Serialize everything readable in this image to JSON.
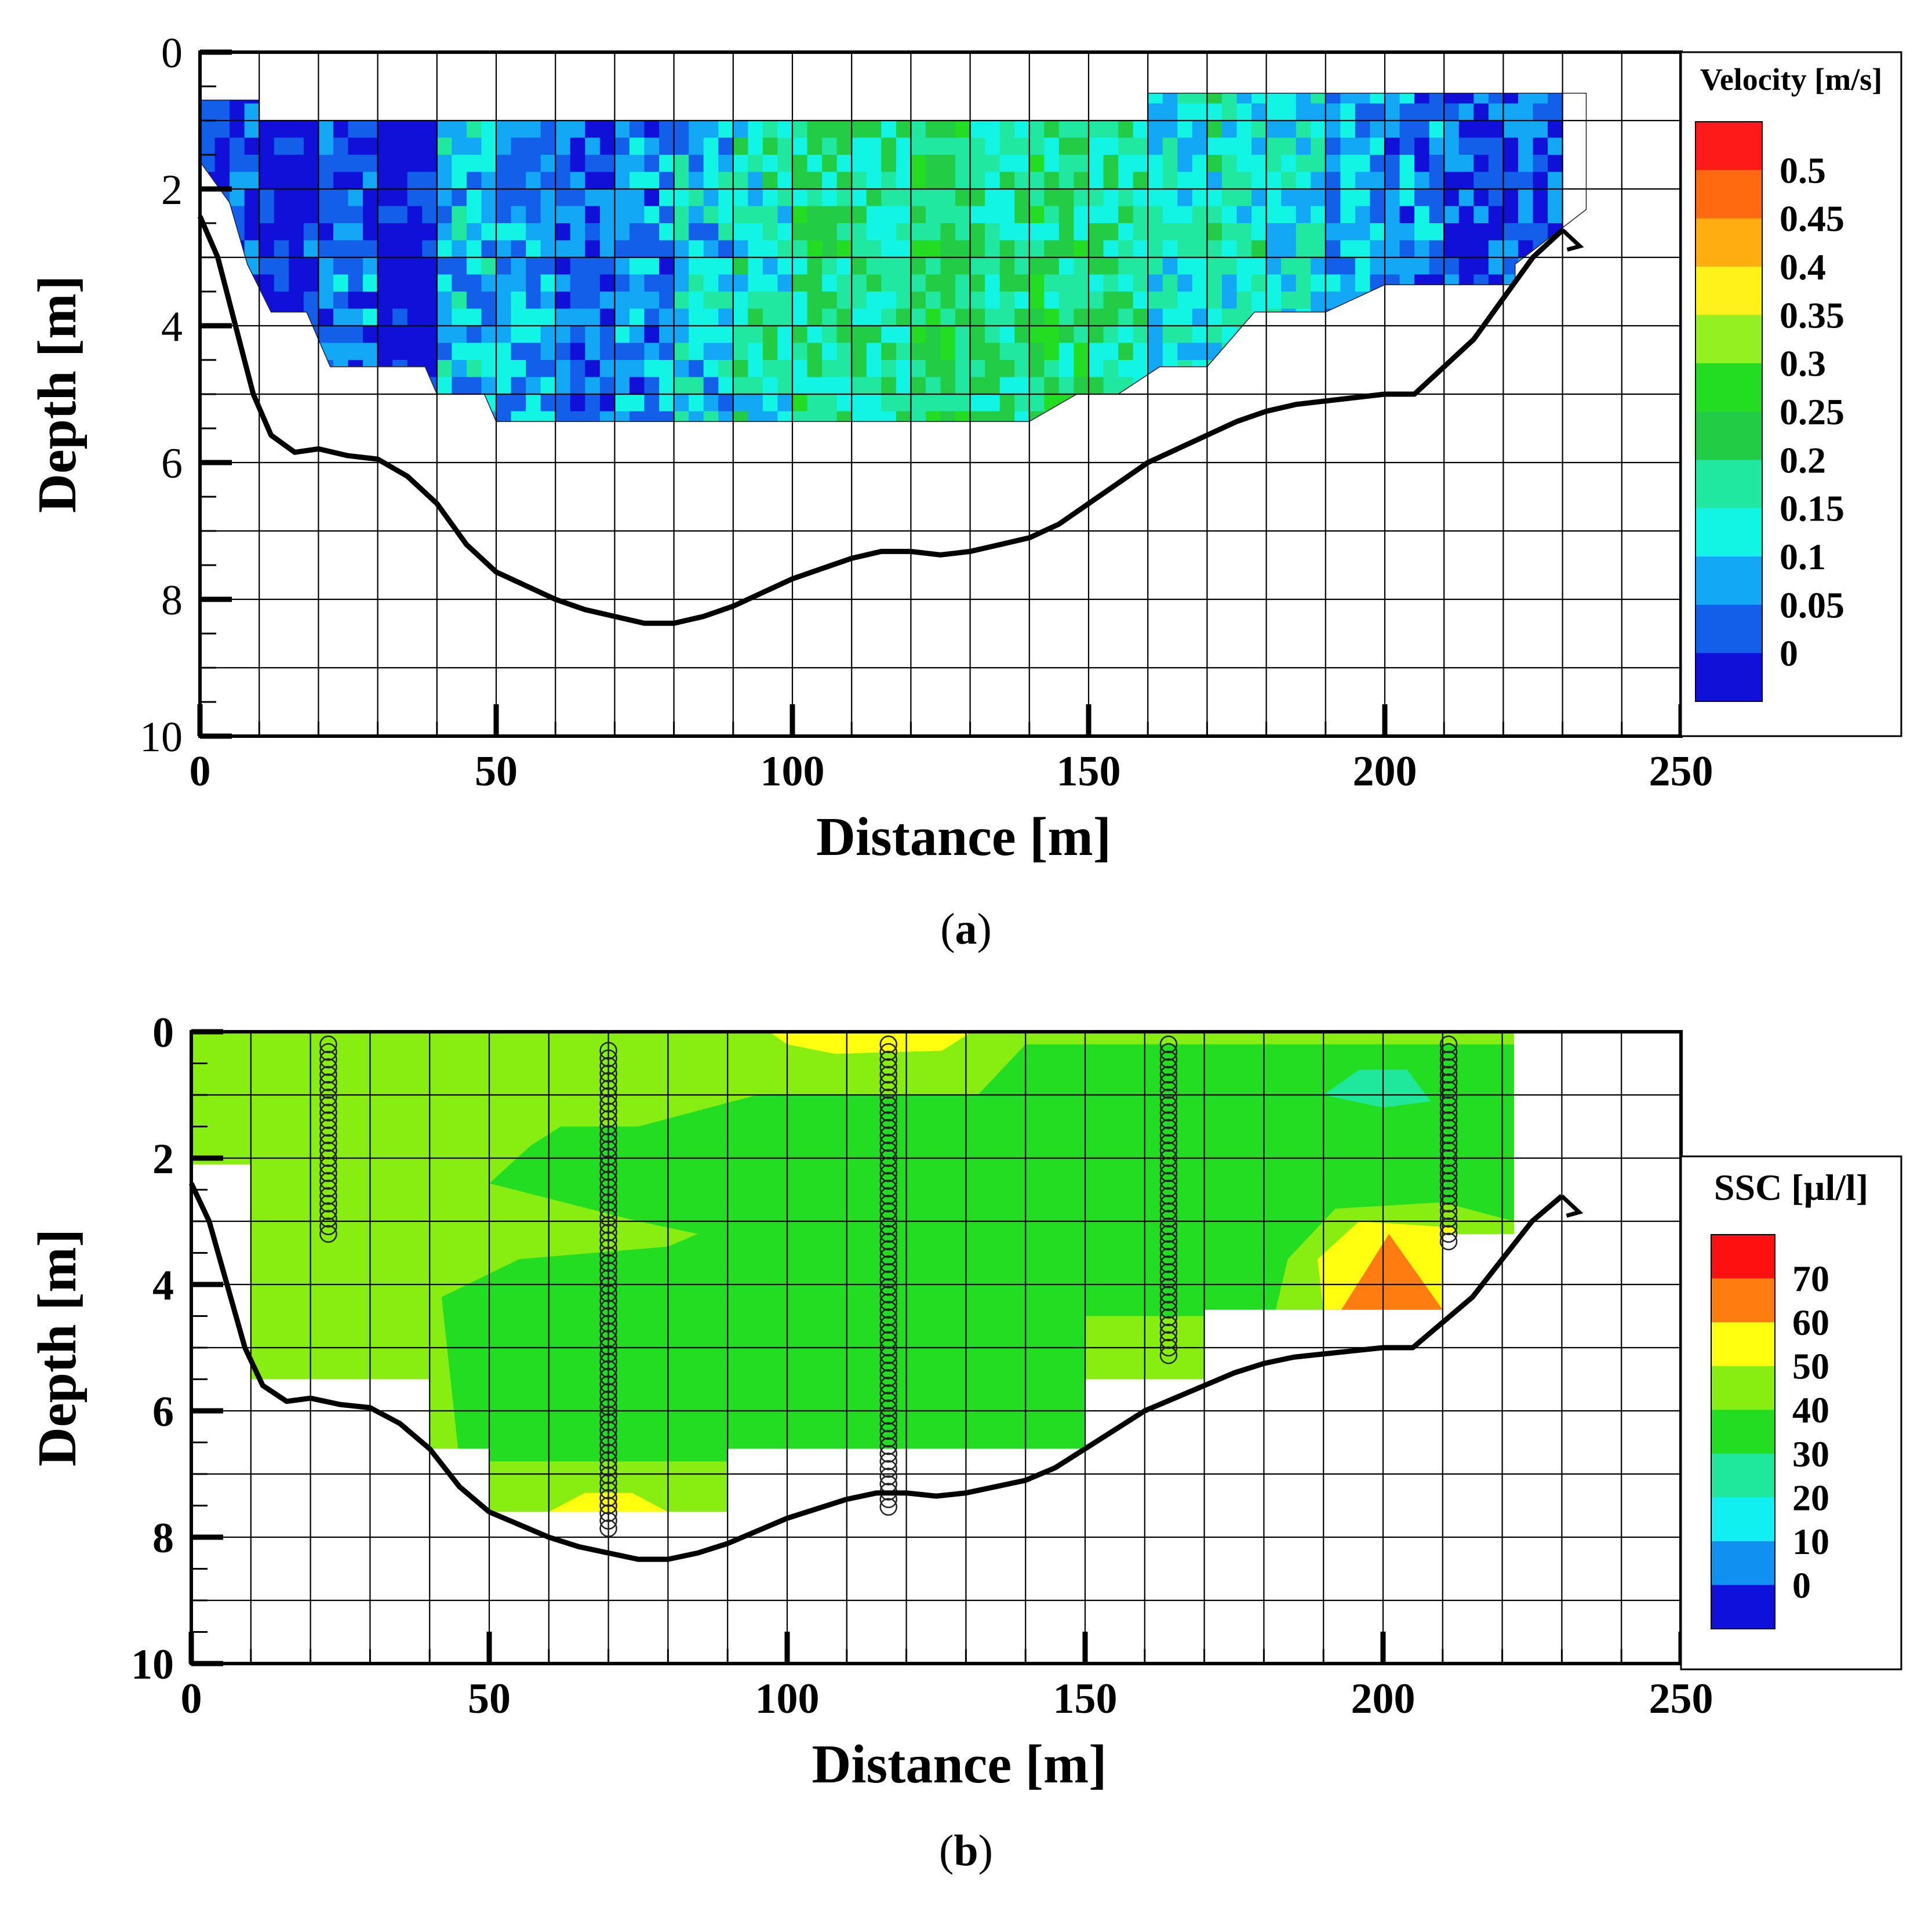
{
  "captions": {
    "a": "a",
    "b": "b"
  },
  "chart_data": [
    {
      "id": "a",
      "type": "heatmap",
      "title": "",
      "xlabel": "Distance [m]",
      "ylabel": "Depth [m]",
      "xlim": [
        0,
        250
      ],
      "ylim": [
        10,
        0
      ],
      "xticks": [
        0,
        50,
        100,
        150,
        200,
        250
      ],
      "yticks": [
        0,
        2,
        4,
        6,
        8,
        10
      ],
      "grid": true,
      "legend": {
        "title": "Velocity [m/s]",
        "labels": [
          "0.5",
          "0.45",
          "0.4",
          "0.35",
          "0.3",
          "0.25",
          "0.2",
          "0.15",
          "0.1",
          "0.05",
          "0"
        ],
        "colors": [
          "#ff1a1a",
          "#ff6a10",
          "#ffad10",
          "#fff21a",
          "#94f020",
          "#22dd22",
          "#22cc44",
          "#20e8a0",
          "#12f5e4",
          "#12a8f5",
          "#1260ea",
          "#1010d8"
        ],
        "placement": "right"
      },
      "coverage_bounds": [
        [
          0,
          0.7
        ],
        [
          10,
          0.7
        ],
        [
          10,
          1.0
        ],
        [
          160,
          1.0
        ],
        [
          160,
          0.6
        ],
        [
          234,
          0.6
        ],
        [
          234,
          2.3
        ],
        [
          222,
          3.1
        ],
        [
          222,
          3.4
        ],
        [
          200,
          3.4
        ],
        [
          190,
          3.8
        ],
        [
          178,
          3.8
        ],
        [
          170,
          4.6
        ],
        [
          162,
          4.6
        ],
        [
          155,
          5.0
        ],
        [
          148,
          5.0
        ],
        [
          140,
          5.4
        ],
        [
          50,
          5.4
        ],
        [
          48,
          5.0
        ],
        [
          40,
          5.0
        ],
        [
          38,
          4.6
        ],
        [
          22,
          4.6
        ],
        [
          18,
          3.8
        ],
        [
          12,
          3.8
        ],
        [
          8,
          3.1
        ],
        [
          5,
          2.2
        ],
        [
          0,
          1.6
        ]
      ],
      "riverbed": {
        "distance": [
          0,
          3,
          6,
          9,
          12,
          16,
          20,
          25,
          30,
          35,
          40,
          45,
          50,
          55,
          60,
          65,
          70,
          75,
          80,
          85,
          90,
          95,
          100,
          105,
          110,
          115,
          120,
          125,
          130,
          135,
          140,
          145,
          150,
          155,
          160,
          165,
          170,
          175,
          180,
          185,
          190,
          195,
          200,
          205,
          210,
          215,
          220,
          225,
          230
        ],
        "depth": [
          2.4,
          3.0,
          4.0,
          5.0,
          5.6,
          5.85,
          5.8,
          5.9,
          5.95,
          6.2,
          6.6,
          7.2,
          7.6,
          7.8,
          8.0,
          8.15,
          8.25,
          8.35,
          8.35,
          8.25,
          8.1,
          7.9,
          7.7,
          7.55,
          7.4,
          7.3,
          7.3,
          7.35,
          7.3,
          7.2,
          7.1,
          6.9,
          6.6,
          6.3,
          6.0,
          5.8,
          5.6,
          5.4,
          5.25,
          5.15,
          5.1,
          5.05,
          5.0,
          5.0,
          4.6,
          4.2,
          3.6,
          3.0,
          2.6
        ]
      },
      "velocity_samples": {
        "distance": [
          5,
          15,
          25,
          35,
          45,
          55,
          65,
          75,
          85,
          95,
          105,
          115,
          125,
          135,
          145,
          155,
          165,
          175,
          185,
          195,
          205,
          215,
          225
        ],
        "mean": [
          0.07,
          0.04,
          0.09,
          0.02,
          0.15,
          0.12,
          0.08,
          0.11,
          0.16,
          0.2,
          0.24,
          0.22,
          0.26,
          0.23,
          0.25,
          0.22,
          0.18,
          0.2,
          0.17,
          0.12,
          0.1,
          0.06,
          0.08
        ]
      }
    },
    {
      "id": "b",
      "type": "heatmap",
      "title": "",
      "xlabel": "Distance [m]",
      "ylabel": "Depth [m]",
      "xlim": [
        0,
        250
      ],
      "ylim": [
        10,
        0
      ],
      "xticks": [
        0,
        50,
        100,
        150,
        200,
        250
      ],
      "yticks": [
        0,
        2,
        4,
        6,
        8,
        10
      ],
      "grid": true,
      "legend": {
        "title": "SSC [µl/l]",
        "labels": [
          "70",
          "60",
          "50",
          "40",
          "30",
          "20",
          "10",
          "0"
        ],
        "colors": [
          "#ff1010",
          "#ff7c10",
          "#ffff10",
          "#88ee11",
          "#22dd22",
          "#20e89a",
          "#10f0f0",
          "#1090f0",
          "#1010dd"
        ],
        "placement": "right"
      },
      "coverage_steps": [
        {
          "x0": 0,
          "x1": 10,
          "depth": 2.1
        },
        {
          "x0": 10,
          "x1": 40,
          "depth": 5.5
        },
        {
          "x0": 40,
          "x1": 50,
          "depth": 6.6
        },
        {
          "x0": 50,
          "x1": 90,
          "depth": 7.6
        },
        {
          "x0": 90,
          "x1": 150,
          "depth": 6.6
        },
        {
          "x0": 150,
          "x1": 170,
          "depth": 5.5
        },
        {
          "x0": 170,
          "x1": 210,
          "depth": 4.4
        },
        {
          "x0": 210,
          "x1": 222,
          "depth": 3.2
        }
      ],
      "sample_profiles": [
        {
          "distance": 23,
          "depth_from": 0.2,
          "depth_to": 3.2
        },
        {
          "distance": 70,
          "depth_from": 0.3,
          "depth_to": 7.9
        },
        {
          "distance": 117,
          "depth_from": 0.2,
          "depth_to": 7.6
        },
        {
          "distance": 164,
          "depth_from": 0.2,
          "depth_to": 5.2
        },
        {
          "distance": 211,
          "depth_from": 0.2,
          "depth_to": 3.4
        }
      ],
      "riverbed": {
        "distance": [
          0,
          3,
          6,
          9,
          12,
          16,
          20,
          25,
          30,
          35,
          40,
          45,
          50,
          55,
          60,
          65,
          70,
          75,
          80,
          85,
          90,
          95,
          100,
          105,
          110,
          115,
          120,
          125,
          130,
          135,
          140,
          145,
          150,
          155,
          160,
          165,
          170,
          175,
          180,
          185,
          190,
          195,
          200,
          205,
          210,
          215,
          220,
          225,
          230
        ],
        "depth": [
          2.4,
          3.0,
          4.0,
          5.0,
          5.6,
          5.85,
          5.8,
          5.9,
          5.95,
          6.2,
          6.6,
          7.2,
          7.6,
          7.8,
          8.0,
          8.15,
          8.25,
          8.35,
          8.35,
          8.25,
          8.1,
          7.9,
          7.7,
          7.55,
          7.4,
          7.3,
          7.3,
          7.35,
          7.3,
          7.2,
          7.1,
          6.9,
          6.6,
          6.3,
          6.0,
          5.8,
          5.6,
          5.4,
          5.25,
          5.15,
          5.1,
          5.05,
          5.0,
          5.0,
          4.6,
          4.2,
          3.6,
          3.0,
          2.6
        ]
      }
    }
  ]
}
